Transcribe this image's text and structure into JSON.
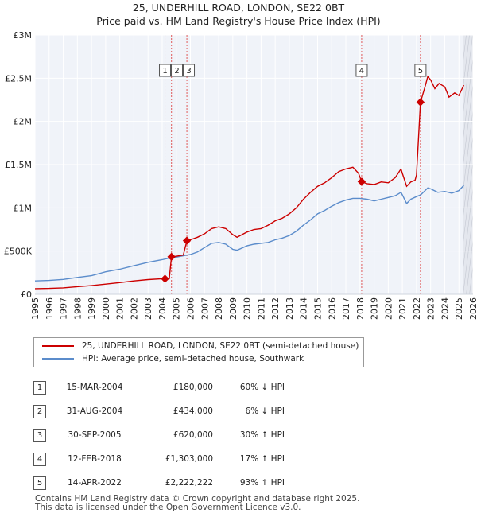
{
  "title_line1": "25, UNDERHILL ROAD, LONDON, SE22 0BT",
  "title_line2": "Price paid vs. HM Land Registry's House Price Index (HPI)",
  "chart_data": {
    "type": "line",
    "x_range": [
      1995,
      2026
    ],
    "y_range": [
      0,
      3000000
    ],
    "y_ticks": [
      {
        "value": 0,
        "label": "£0"
      },
      {
        "value": 500000,
        "label": "£500K"
      },
      {
        "value": 1000000,
        "label": "£1M"
      },
      {
        "value": 1500000,
        "label": "£1.5M"
      },
      {
        "value": 2000000,
        "label": "£2M"
      },
      {
        "value": 2500000,
        "label": "£2.5M"
      },
      {
        "value": 3000000,
        "label": "£3M"
      }
    ],
    "x_ticks": [
      "1995",
      "1996",
      "1997",
      "1998",
      "1999",
      "2000",
      "2001",
      "2002",
      "2003",
      "2004",
      "2005",
      "2006",
      "2007",
      "2008",
      "2009",
      "2010",
      "2011",
      "2012",
      "2013",
      "2014",
      "2015",
      "2016",
      "2017",
      "2018",
      "2019",
      "2020",
      "2021",
      "2022",
      "2023",
      "2024",
      "2025",
      "2026"
    ],
    "series": [
      {
        "name": "25, UNDERHILL ROAD, LONDON, SE22 0BT (semi-detached house)",
        "color": "#cc0000",
        "points": [
          [
            1995.0,
            65000
          ],
          [
            1996.0,
            68000
          ],
          [
            1997.0,
            75000
          ],
          [
            1998.0,
            88000
          ],
          [
            1999.0,
            100000
          ],
          [
            2000.0,
            118000
          ],
          [
            2001.0,
            135000
          ],
          [
            2002.0,
            155000
          ],
          [
            2003.0,
            170000
          ],
          [
            2004.0,
            180000
          ],
          [
            2004.2,
            180000
          ],
          [
            2004.5,
            180000
          ],
          [
            2004.66,
            434000
          ],
          [
            2005.0,
            440000
          ],
          [
            2005.5,
            455000
          ],
          [
            2005.75,
            620000
          ],
          [
            2006.0,
            630000
          ],
          [
            2006.5,
            660000
          ],
          [
            2007.0,
            700000
          ],
          [
            2007.5,
            760000
          ],
          [
            2008.0,
            780000
          ],
          [
            2008.5,
            760000
          ],
          [
            2009.0,
            690000
          ],
          [
            2009.3,
            660000
          ],
          [
            2010.0,
            720000
          ],
          [
            2010.5,
            750000
          ],
          [
            2011.0,
            760000
          ],
          [
            2011.5,
            800000
          ],
          [
            2012.0,
            850000
          ],
          [
            2012.5,
            880000
          ],
          [
            2013.0,
            930000
          ],
          [
            2013.5,
            1000000
          ],
          [
            2014.0,
            1100000
          ],
          [
            2014.5,
            1180000
          ],
          [
            2015.0,
            1250000
          ],
          [
            2015.5,
            1290000
          ],
          [
            2016.0,
            1350000
          ],
          [
            2016.5,
            1420000
          ],
          [
            2017.0,
            1450000
          ],
          [
            2017.5,
            1470000
          ],
          [
            2017.9,
            1400000
          ],
          [
            2018.12,
            1303000
          ],
          [
            2018.5,
            1280000
          ],
          [
            2019.0,
            1270000
          ],
          [
            2019.5,
            1300000
          ],
          [
            2020.0,
            1290000
          ],
          [
            2020.5,
            1350000
          ],
          [
            2020.9,
            1450000
          ],
          [
            2021.0,
            1400000
          ],
          [
            2021.3,
            1250000
          ],
          [
            2021.6,
            1300000
          ],
          [
            2021.9,
            1320000
          ],
          [
            2022.0,
            1380000
          ],
          [
            2022.28,
            2222222
          ],
          [
            2022.6,
            2400000
          ],
          [
            2022.8,
            2520000
          ],
          [
            2023.0,
            2480000
          ],
          [
            2023.3,
            2380000
          ],
          [
            2023.6,
            2440000
          ],
          [
            2024.0,
            2400000
          ],
          [
            2024.3,
            2280000
          ],
          [
            2024.7,
            2330000
          ],
          [
            2025.0,
            2300000
          ],
          [
            2025.2,
            2370000
          ],
          [
            2025.35,
            2420000
          ]
        ]
      },
      {
        "name": "HPI: Average price, semi-detached house, Southwark",
        "color": "#5b8ccb",
        "points": [
          [
            1995.0,
            155000
          ],
          [
            1996.0,
            160000
          ],
          [
            1997.0,
            172000
          ],
          [
            1998.0,
            195000
          ],
          [
            1999.0,
            215000
          ],
          [
            2000.0,
            260000
          ],
          [
            2001.0,
            290000
          ],
          [
            2002.0,
            330000
          ],
          [
            2003.0,
            370000
          ],
          [
            2004.0,
            400000
          ],
          [
            2004.5,
            420000
          ],
          [
            2005.0,
            430000
          ],
          [
            2005.5,
            445000
          ],
          [
            2006.0,
            460000
          ],
          [
            2006.5,
            490000
          ],
          [
            2007.0,
            540000
          ],
          [
            2007.5,
            590000
          ],
          [
            2008.0,
            600000
          ],
          [
            2008.5,
            580000
          ],
          [
            2009.0,
            520000
          ],
          [
            2009.3,
            510000
          ],
          [
            2010.0,
            560000
          ],
          [
            2010.5,
            580000
          ],
          [
            2011.0,
            590000
          ],
          [
            2011.5,
            600000
          ],
          [
            2012.0,
            630000
          ],
          [
            2012.5,
            650000
          ],
          [
            2013.0,
            680000
          ],
          [
            2013.5,
            730000
          ],
          [
            2014.0,
            800000
          ],
          [
            2014.5,
            860000
          ],
          [
            2015.0,
            930000
          ],
          [
            2015.5,
            970000
          ],
          [
            2016.0,
            1020000
          ],
          [
            2016.5,
            1060000
          ],
          [
            2017.0,
            1090000
          ],
          [
            2017.5,
            1110000
          ],
          [
            2018.0,
            1110000
          ],
          [
            2018.5,
            1100000
          ],
          [
            2019.0,
            1080000
          ],
          [
            2019.5,
            1100000
          ],
          [
            2020.0,
            1120000
          ],
          [
            2020.5,
            1140000
          ],
          [
            2020.9,
            1180000
          ],
          [
            2021.0,
            1150000
          ],
          [
            2021.3,
            1050000
          ],
          [
            2021.6,
            1100000
          ],
          [
            2022.0,
            1130000
          ],
          [
            2022.3,
            1150000
          ],
          [
            2022.8,
            1230000
          ],
          [
            2023.0,
            1220000
          ],
          [
            2023.5,
            1180000
          ],
          [
            2024.0,
            1190000
          ],
          [
            2024.5,
            1170000
          ],
          [
            2025.0,
            1200000
          ],
          [
            2025.35,
            1260000
          ]
        ]
      }
    ],
    "sales": [
      {
        "n": "1",
        "year": 2004.2,
        "price": 180000
      },
      {
        "n": "2",
        "year": 2004.66,
        "price": 434000
      },
      {
        "n": "3",
        "year": 2005.75,
        "price": 620000
      },
      {
        "n": "4",
        "year": 2018.12,
        "price": 1303000
      },
      {
        "n": "5",
        "year": 2022.28,
        "price": 2222222
      }
    ],
    "projection_start_year": 2025.3
  },
  "legend": {
    "property_label": "25, UNDERHILL ROAD, LONDON, SE22 0BT (semi-detached house)",
    "hpi_label": "HPI: Average price, semi-detached house, Southwark"
  },
  "table": [
    {
      "n": "1",
      "date": "15-MAR-2004",
      "price": "£180,000",
      "pct": "60% ↓ HPI"
    },
    {
      "n": "2",
      "date": "31-AUG-2004",
      "price": "£434,000",
      "pct": "6% ↓ HPI"
    },
    {
      "n": "3",
      "date": "30-SEP-2005",
      "price": "£620,000",
      "pct": "30% ↑ HPI"
    },
    {
      "n": "4",
      "date": "12-FEB-2018",
      "price": "£1,303,000",
      "pct": "17% ↑ HPI"
    },
    {
      "n": "5",
      "date": "14-APR-2022",
      "price": "£2,222,222",
      "pct": "93% ↑ HPI"
    }
  ],
  "footer_line1": "Contains HM Land Registry data © Crown copyright and database right 2025.",
  "footer_line2": "This data is licensed under the Open Government Licence v3.0."
}
